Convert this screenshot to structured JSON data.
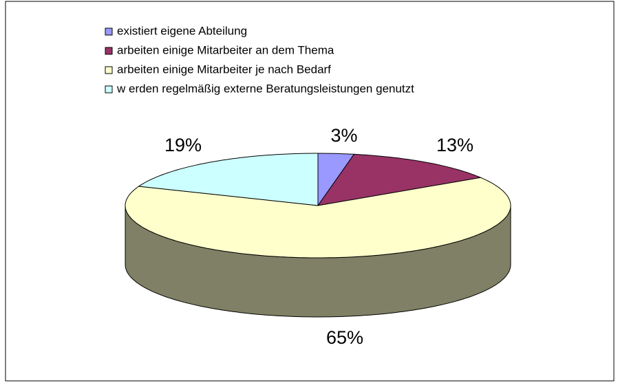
{
  "chart_data": {
    "type": "pie3d",
    "categories": [
      "existiert eigene Abteilung",
      "arbeiten einige Mitarbeiter an dem Thema",
      "arbeiten einige Mitarbeiter je nach Bedarf",
      "w erden regelmäßig externe Beratungsleistungen genutzt"
    ],
    "values": [
      3,
      13,
      65,
      19
    ],
    "value_labels": [
      "3%",
      "13%",
      "65%",
      "19%"
    ],
    "colors": [
      "#9999ff",
      "#993366",
      "#ffffcc",
      "#ccffff"
    ],
    "legend": "top-left"
  }
}
